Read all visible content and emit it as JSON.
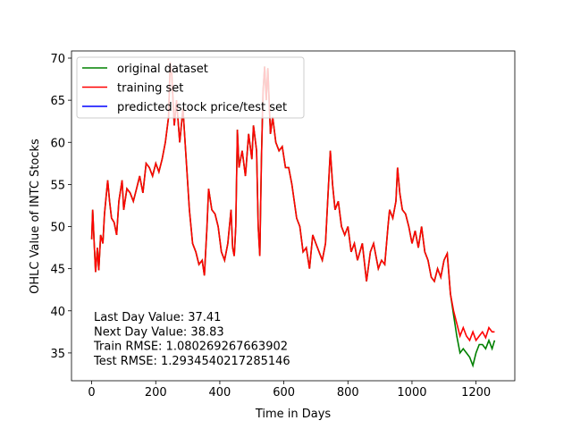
{
  "chart_data": {
    "type": "line",
    "xlabel": "Time in Days",
    "ylabel": "OHLC Value of INTC Stocks",
    "xlim": [
      -63,
      1321
    ],
    "ylim": [
      31.7,
      70.85
    ],
    "xticks": [
      0,
      200,
      400,
      600,
      800,
      1000,
      1200
    ],
    "yticks": [
      35,
      40,
      45,
      50,
      55,
      60,
      65,
      70
    ],
    "legend": "upper left",
    "annotations": [
      "Last Day Value: 37.41",
      "Next Day Value: 38.83",
      "Train RMSE: 1.080269267663902",
      "Test RMSE: 1.2934540217285146"
    ],
    "series": [
      {
        "name": "original dataset",
        "color": "#008000",
        "x": [
          0,
          3,
          8,
          12,
          18,
          22,
          28,
          35,
          40,
          50,
          56,
          62,
          70,
          78,
          85,
          95,
          100,
          110,
          120,
          130,
          140,
          150,
          160,
          170,
          180,
          190,
          200,
          210,
          220,
          230,
          240,
          245,
          250,
          258,
          265,
          275,
          285,
          295,
          305,
          315,
          325,
          335,
          345,
          352,
          360,
          365,
          375,
          385,
          395,
          405,
          415,
          425,
          435,
          440,
          445,
          450,
          455,
          460,
          470,
          480,
          490,
          500,
          505,
          515,
          520,
          525,
          530,
          535,
          540,
          545,
          550,
          558,
          565,
          575,
          585,
          595,
          605,
          615,
          625,
          640,
          650,
          660,
          670,
          680,
          690,
          700,
          710,
          720,
          730,
          738,
          745,
          752,
          760,
          770,
          780,
          790,
          800,
          810,
          820,
          830,
          845,
          858,
          870,
          880,
          895,
          905,
          915,
          925,
          930,
          940,
          950,
          955,
          962,
          970,
          980,
          990,
          1000,
          1010,
          1020,
          1030,
          1040,
          1050,
          1060,
          1070,
          1080,
          1090,
          1100,
          1110,
          1120,
          1130,
          1140,
          1150,
          1160,
          1170,
          1180,
          1190,
          1200,
          1210,
          1220,
          1230,
          1240,
          1250,
          1258
        ],
        "values": [
          48.5,
          52,
          48,
          44.6,
          47.5,
          44.8,
          49,
          48,
          51.5,
          55.5,
          53,
          51,
          50.5,
          49,
          53,
          55.5,
          52,
          54.5,
          54,
          53,
          54.5,
          56,
          54,
          57.5,
          57,
          56,
          57.5,
          56.5,
          58,
          60,
          63,
          69.5,
          68,
          62,
          65,
          60,
          64,
          58,
          52,
          48,
          47,
          45.5,
          46,
          44.2,
          50,
          54.5,
          52,
          51.5,
          50,
          47,
          46,
          48,
          52,
          47.5,
          46.5,
          50,
          61.5,
          57,
          59,
          56,
          61,
          58,
          62,
          59,
          50,
          46.5,
          58,
          66,
          69,
          65,
          68.8,
          61,
          63,
          60,
          59,
          59.5,
          57,
          57,
          55,
          51,
          50,
          47,
          47.5,
          45,
          49,
          48,
          47,
          46,
          48,
          54,
          59,
          55,
          52,
          53,
          50,
          49,
          50,
          47,
          48,
          46,
          48,
          43.5,
          47,
          48,
          45,
          46,
          45.5,
          50,
          52,
          51,
          53,
          57,
          54,
          52,
          51.5,
          50,
          48,
          49.5,
          47.5,
          50,
          47,
          46,
          44,
          43.5,
          45,
          44,
          46,
          46.8,
          42,
          39.5,
          37,
          35,
          35.5,
          35,
          34.5,
          33.5,
          35,
          36,
          36,
          35.5,
          36.5,
          35.5,
          36.5
        ]
      },
      {
        "name": "training set",
        "color": "#ff0000",
        "x": [
          0,
          3,
          8,
          12,
          18,
          22,
          28,
          35,
          40,
          50,
          56,
          62,
          70,
          78,
          85,
          95,
          100,
          110,
          120,
          130,
          140,
          150,
          160,
          170,
          180,
          190,
          200,
          210,
          220,
          230,
          240,
          245,
          250,
          258,
          265,
          275,
          285,
          295,
          305,
          315,
          325,
          335,
          345,
          352,
          360,
          365,
          375,
          385,
          395,
          405,
          415,
          425,
          435,
          440,
          445,
          450,
          455,
          460,
          470,
          480,
          490,
          500,
          505,
          515,
          520,
          525,
          530,
          535,
          540,
          545,
          550,
          558,
          565,
          575,
          585,
          595,
          605,
          615,
          625,
          640,
          650,
          660,
          670,
          680,
          690,
          700,
          710,
          720,
          730,
          738,
          745,
          752,
          760,
          770,
          780,
          790,
          800,
          810,
          820,
          830,
          845,
          858,
          870,
          880,
          895,
          905,
          915,
          925,
          930,
          940,
          950,
          955,
          962,
          970,
          980,
          990,
          1000,
          1010,
          1020,
          1030,
          1040,
          1050,
          1060,
          1070,
          1080,
          1090,
          1100,
          1110,
          1120,
          1130,
          1140,
          1150,
          1160,
          1170,
          1180,
          1190,
          1200,
          1210,
          1220,
          1230,
          1240,
          1250,
          1258
        ],
        "values": [
          48.5,
          52,
          48,
          44.6,
          47.5,
          44.8,
          49,
          48,
          51.5,
          55.5,
          53,
          51,
          50.5,
          49,
          53,
          55.5,
          52,
          54.5,
          54,
          53,
          54.5,
          56,
          54,
          57.5,
          57,
          56,
          57.5,
          56.5,
          58,
          60,
          63,
          69.5,
          68,
          62,
          65,
          60,
          64,
          58,
          52,
          48,
          47,
          45.5,
          46,
          44.2,
          50,
          54.5,
          52,
          51.5,
          50,
          47,
          46,
          48,
          52,
          47.5,
          46.5,
          50,
          61.5,
          57,
          59,
          56,
          61,
          58,
          62,
          59,
          50,
          46.5,
          58,
          66,
          69,
          65,
          68.8,
          61,
          63,
          60,
          59,
          59.5,
          57,
          57,
          55,
          51,
          50,
          47,
          47.5,
          45,
          49,
          48,
          47,
          46,
          48,
          54,
          59,
          55,
          52,
          53,
          50,
          49,
          50,
          47,
          48,
          46,
          48,
          43.5,
          47,
          48,
          45,
          46,
          45.5,
          50,
          52,
          51,
          53,
          57,
          54,
          52,
          51.5,
          50,
          48,
          49.5,
          47.5,
          50,
          47,
          46,
          44,
          43.5,
          45,
          44,
          46,
          46.8,
          42,
          40,
          38.5,
          37,
          38,
          37,
          36.5,
          37.5,
          36.5,
          37,
          37.5,
          36.8,
          38,
          37.5,
          37.5
        ]
      },
      {
        "name": "predicted stock price/test set",
        "color": "#0000ff",
        "x": [],
        "values": []
      }
    ]
  }
}
